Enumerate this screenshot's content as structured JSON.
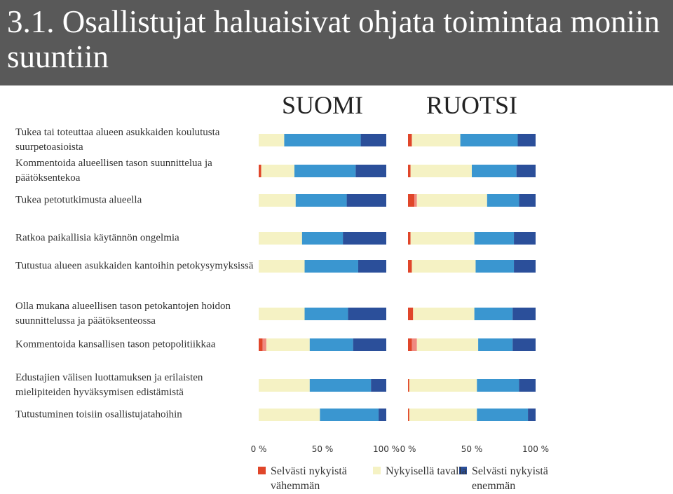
{
  "header": {
    "title": "3.1. Osallistujat haluaisivat ohjata toimintaa moniin suuntiin"
  },
  "chart_data": [
    {
      "type": "bar",
      "orientation": "horizontal",
      "stacked": true,
      "title": "SUOMI",
      "categories": [
        "Tukea tai toteuttaa alueen asukkaiden koulutusta suurpetoasioista",
        "Kommentoida alueellisen tason suunnittelua ja päätöksentekoa",
        "Tukea petotutkimusta alueella",
        "Ratkoa paikallisia käytännön ongelmia",
        "Tutustua alueen asukkaiden kantoihin petokysymyksissä",
        "Olla mukana alueellisen tason petokantojen hoidon suunnittelussa ja päätöksenteossa",
        "Kommentoida kansallisen tason petopolitiikkaa",
        "Edustajien välisen luottamuksen ja erilaisten mielipiteiden hyväksymisen edistämistä",
        "Tutustuminen toisiin osallistujatahoihin"
      ],
      "series": [
        {
          "name": "Selvästi nykyistä vähemmän",
          "color": "#e0462a",
          "values": [
            0,
            2,
            0,
            0,
            0,
            0,
            3,
            0,
            0
          ]
        },
        {
          "color": "#f08a80",
          "values": [
            0,
            0,
            0,
            0,
            0,
            0,
            3,
            0,
            0
          ]
        },
        {
          "name": "Nykyisellä tavalla",
          "color": "#f5f2c4",
          "values": [
            20,
            26,
            29,
            34,
            36,
            36,
            34,
            40,
            48
          ]
        },
        {
          "color": "#3a96d0",
          "values": [
            60,
            48,
            40,
            32,
            42,
            34,
            34,
            48,
            46
          ]
        },
        {
          "name": "Selvästi nykyistä enemmän",
          "color": "#2b4f9a",
          "values": [
            20,
            24,
            31,
            34,
            22,
            30,
            26,
            12,
            6
          ]
        }
      ],
      "xlim": [
        0,
        100
      ],
      "xticks": [
        {
          "value": 0,
          "label": "0 %"
        },
        {
          "value": 50,
          "label": "50 %"
        },
        {
          "value": 100,
          "label": "100 %"
        }
      ]
    },
    {
      "type": "bar",
      "orientation": "horizontal",
      "stacked": true,
      "title": "RUOTSI",
      "categories": [
        null,
        null,
        null,
        null,
        null,
        null,
        null,
        null,
        null
      ],
      "series": [
        {
          "color": "#e0462a",
          "values": [
            3,
            2,
            5,
            2,
            3,
            4,
            3,
            1,
            1
          ]
        },
        {
          "color": "#f08a80",
          "values": [
            0,
            0,
            2,
            0,
            0,
            0,
            4,
            0,
            0
          ]
        },
        {
          "color": "#f5f2c4",
          "values": [
            38,
            48,
            55,
            50,
            50,
            48,
            48,
            53,
            53
          ]
        },
        {
          "color": "#3a96d0",
          "values": [
            45,
            35,
            25,
            31,
            30,
            30,
            27,
            33,
            40
          ]
        },
        {
          "color": "#2b4f9a",
          "values": [
            14,
            15,
            13,
            17,
            17,
            18,
            18,
            13,
            6
          ]
        }
      ],
      "xlim": [
        0,
        100
      ],
      "xticks": [
        {
          "value": 0,
          "label": "0 %"
        },
        {
          "value": 50,
          "label": "50 %"
        },
        {
          "value": 100,
          "label": "100 %"
        }
      ]
    }
  ]
}
